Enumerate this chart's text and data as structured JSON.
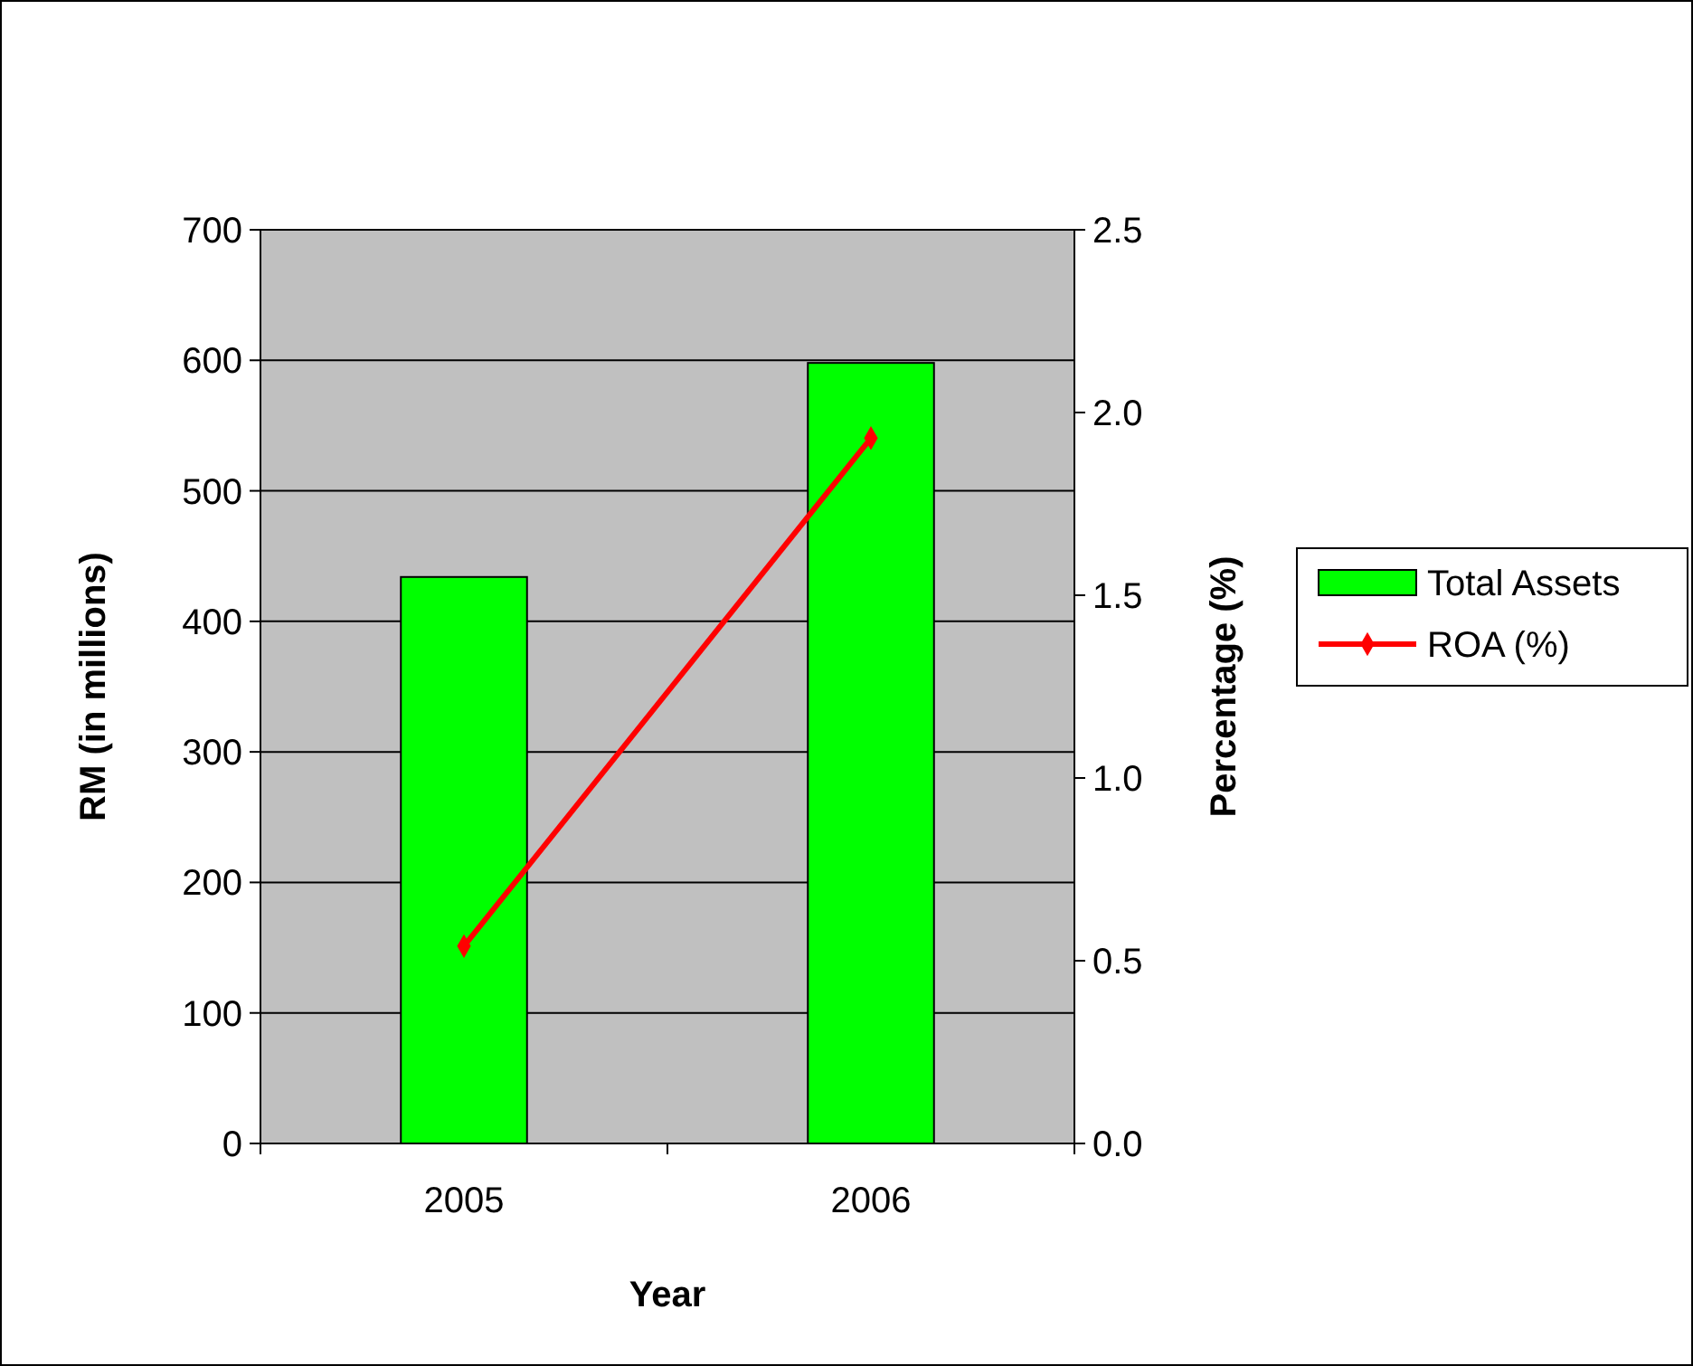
{
  "chart_data": {
    "type": "bar",
    "categories": [
      "2005",
      "2006"
    ],
    "xlabel": "Year",
    "ylabel": "RM (in millions)",
    "y2label": "Percentage (%)",
    "series": [
      {
        "name": "Total Assets",
        "color": "#00ff00",
        "values": [
          434,
          598
        ]
      },
      {
        "name": "ROA (%)",
        "type": "line",
        "axis": "y2",
        "color": "#ff0000",
        "values": [
          0.54,
          1.93
        ],
        "marker": "diamond"
      }
    ],
    "ylim": [
      0,
      700
    ],
    "yticks": [
      0,
      100,
      200,
      300,
      400,
      500,
      600,
      700
    ],
    "y2lim": [
      0,
      2.5
    ],
    "y2ticks": [
      {
        "value": 0,
        "label": "0.0"
      },
      {
        "value": 0.5,
        "label": "0.5"
      },
      {
        "value": 1,
        "label": "1.0"
      },
      {
        "value": 1.5,
        "label": "1.5"
      },
      {
        "value": 2,
        "label": "2.0"
      },
      {
        "value": 2.5,
        "label": "2.5"
      }
    ],
    "grid": "y",
    "legend": "right"
  }
}
